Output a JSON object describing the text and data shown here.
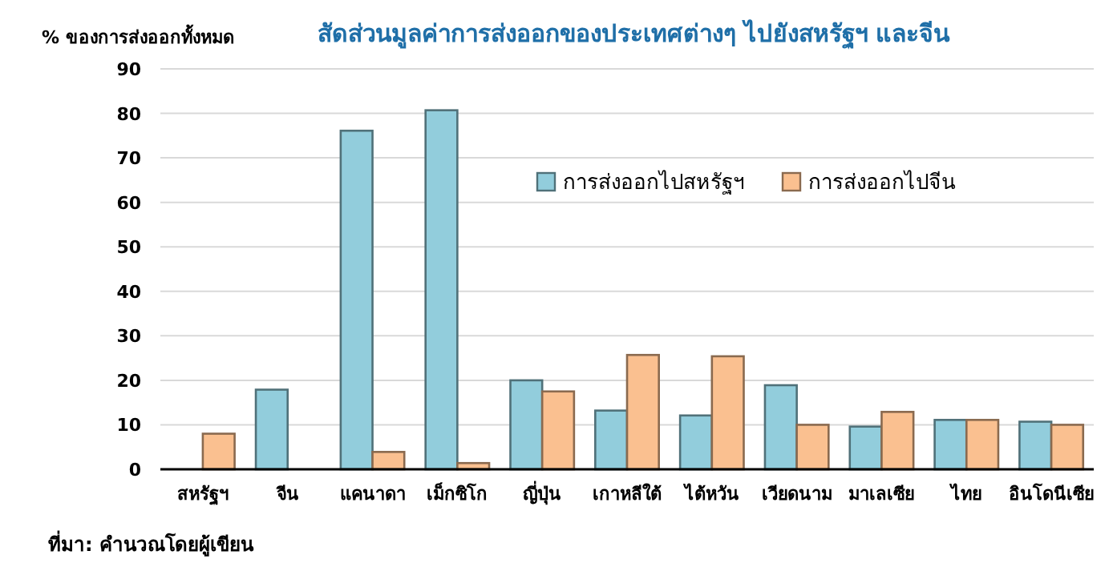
{
  "chart_data": {
    "type": "bar",
    "title": "สัดส่วนมูลค่าการส่งออกของประเทศต่างๆ ไปยังสหรัฐฯ และจีน",
    "ylabel": "% ของการส่งออกทั้งหมด",
    "categories": [
      "สหรัฐฯ",
      "จีน",
      "แคนาดา",
      "เม็กซิโก",
      "ญี่ปุ่น",
      "เกาหลีใต้",
      "ไต้หวัน",
      "เวียดนาม",
      "มาเลเซีย",
      "ไทย",
      "อินโดนีเซีย"
    ],
    "series": [
      {
        "name": "การส่งออกไปสหรัฐฯ",
        "color": "#92cddc",
        "values": [
          null,
          17.9,
          76.1,
          80.7,
          20,
          13.2,
          12.1,
          18.9,
          9.6,
          11.1,
          10.7
        ]
      },
      {
        "name": "การส่งออกไปจีน",
        "color": "#fac090",
        "values": [
          8,
          null,
          3.9,
          1.4,
          17.5,
          25.7,
          25.4,
          10,
          12.9,
          11.1,
          10
        ]
      }
    ],
    "ylim": [
      0,
      90
    ],
    "yticks": [
      0,
      10,
      20,
      30,
      40,
      50,
      60,
      70,
      80,
      90
    ],
    "grid": "y",
    "legend": "top right",
    "annotations": [
      "ที่มา: คำนวณโดยผู้เขียน"
    ]
  }
}
